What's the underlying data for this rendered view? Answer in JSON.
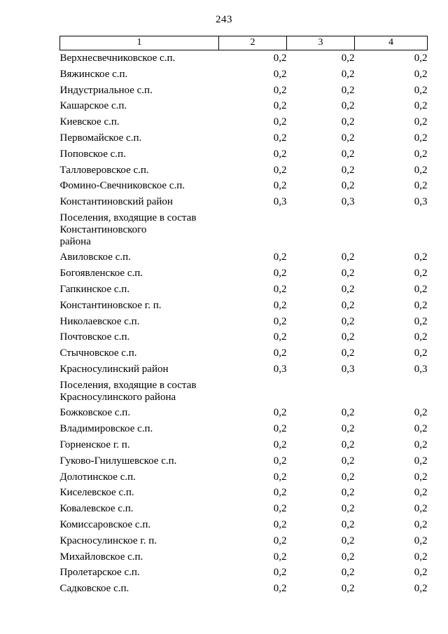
{
  "page": {
    "number": "243"
  },
  "table": {
    "headers": [
      "1",
      "2",
      "3",
      "4"
    ],
    "rows": [
      {
        "name": "Верхнесвечниковское с.п.",
        "values": [
          "0,2",
          "0,2",
          "0,2"
        ]
      },
      {
        "name": "Вяжинское с.п.",
        "values": [
          "0,2",
          "0,2",
          "0,2"
        ]
      },
      {
        "name": "Индустриальное с.п.",
        "values": [
          "0,2",
          "0,2",
          "0,2"
        ]
      },
      {
        "name": "Кашарское с.п.",
        "values": [
          "0,2",
          "0,2",
          "0,2"
        ]
      },
      {
        "name": "Киевское с.п.",
        "values": [
          "0,2",
          "0,2",
          "0,2"
        ]
      },
      {
        "name": "Первомайское с.п.",
        "values": [
          "0,2",
          "0,2",
          "0,2"
        ]
      },
      {
        "name": "Поповское с.п.",
        "values": [
          "0,2",
          "0,2",
          "0,2"
        ]
      },
      {
        "name": "Талловеровское с.п.",
        "values": [
          "0,2",
          "0,2",
          "0,2"
        ]
      },
      {
        "name": "Фомино-Свечниковское с.п.",
        "values": [
          "0,2",
          "0,2",
          "0,2"
        ]
      },
      {
        "name": "Константиновский район",
        "values": [
          "0,3",
          "0,3",
          "0,3"
        ]
      },
      {
        "name": "Поселения, входящие в состав\nКонстантиновского\nрайона",
        "values": [
          "",
          "",
          ""
        ]
      },
      {
        "name": "Авиловское с.п.",
        "values": [
          "0,2",
          "0,2",
          "0,2"
        ]
      },
      {
        "name": "Богоявленское с.п.",
        "values": [
          "0,2",
          "0,2",
          "0,2"
        ]
      },
      {
        "name": "Гапкинское с.п.",
        "values": [
          "0,2",
          "0,2",
          "0,2"
        ]
      },
      {
        "name": "Константиновское г. п.",
        "values": [
          "0,2",
          "0,2",
          "0,2"
        ]
      },
      {
        "name": "Николаевское с.п.",
        "values": [
          "0,2",
          "0,2",
          "0,2"
        ]
      },
      {
        "name": "Почтовское с.п.",
        "values": [
          "0,2",
          "0,2",
          "0,2"
        ]
      },
      {
        "name": "Стычновское с.п.",
        "values": [
          "0,2",
          "0,2",
          "0,2"
        ]
      },
      {
        "name": "Красносулинский район",
        "values": [
          "0,3",
          "0,3",
          "0,3"
        ]
      },
      {
        "name": "Поселения, входящие в состав\nКрасносулинского района",
        "values": [
          "",
          "",
          ""
        ]
      },
      {
        "name": "Божковское с.п.",
        "values": [
          "0,2",
          "0,2",
          "0,2"
        ]
      },
      {
        "name": "Владимировское с.п.",
        "values": [
          "0,2",
          "0,2",
          "0,2"
        ]
      },
      {
        "name": "Горненское г. п.",
        "values": [
          "0,2",
          "0,2",
          "0,2"
        ]
      },
      {
        "name": "Гуково-Гнилушевское с.п.",
        "values": [
          "0,2",
          "0,2",
          "0,2"
        ]
      },
      {
        "name": "Долотинское с.п.",
        "values": [
          "0,2",
          "0,2",
          "0,2"
        ]
      },
      {
        "name": "Киселевское с.п.",
        "values": [
          "0,2",
          "0,2",
          "0,2"
        ]
      },
      {
        "name": "Ковалевское с.п.",
        "values": [
          "0,2",
          "0,2",
          "0,2"
        ]
      },
      {
        "name": "Комиссаровское с.п.",
        "values": [
          "0,2",
          "0,2",
          "0,2"
        ]
      },
      {
        "name": "Красносулинское г. п.",
        "values": [
          "0,2",
          "0,2",
          "0,2"
        ]
      },
      {
        "name": "Михайловское с.п.",
        "values": [
          "0,2",
          "0,2",
          "0,2"
        ]
      },
      {
        "name": "Пролетарское с.п.",
        "values": [
          "0,2",
          "0,2",
          "0,2"
        ]
      },
      {
        "name": "Садковское с.п.",
        "values": [
          "0,2",
          "0,2",
          "0,2"
        ]
      }
    ]
  }
}
